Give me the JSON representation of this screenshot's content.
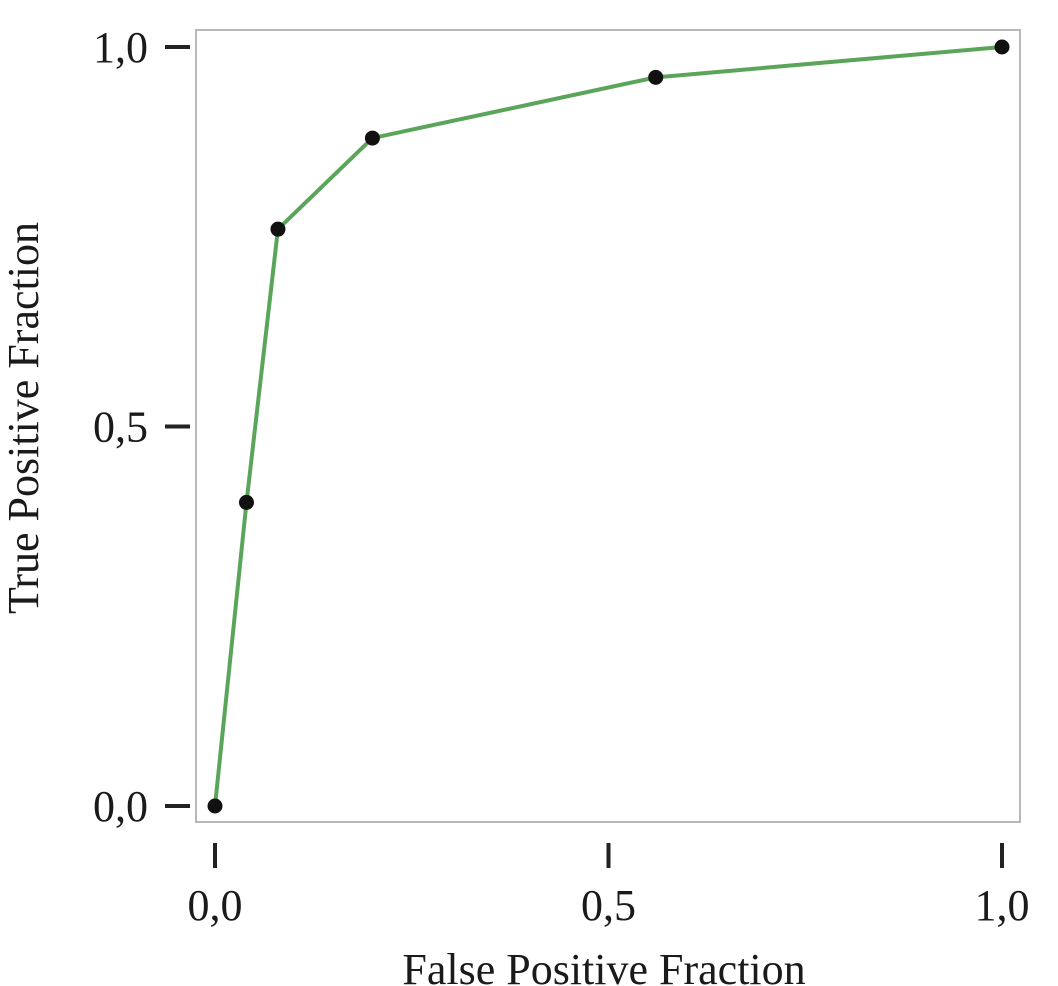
{
  "chart_data": {
    "type": "line",
    "title": "",
    "xlabel": "False Positive Fraction",
    "ylabel": "True Positive Fraction",
    "xlim": [
      0,
      1
    ],
    "ylim": [
      0,
      1
    ],
    "x_ticks": [
      0,
      0.5,
      1
    ],
    "y_ticks": [
      0,
      0.5,
      1
    ],
    "x_tick_labels": [
      "0,0",
      "0,5",
      "1,0"
    ],
    "y_tick_labels": [
      "0,0",
      "0,5",
      "1,0"
    ],
    "grid": false,
    "series": [
      {
        "x": [
          0.0,
          0.04,
          0.08,
          0.2,
          0.56,
          1.0
        ],
        "y": [
          0.0,
          0.4,
          0.76,
          0.88,
          0.96,
          1.0
        ],
        "line_color": "#5aa55a",
        "marker_color": "#111111"
      }
    ],
    "frame_color": "#b8b8b8"
  }
}
